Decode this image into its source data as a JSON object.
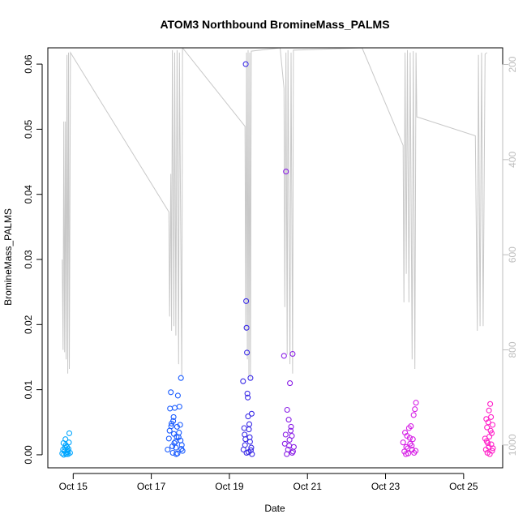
{
  "chart_data": {
    "type": "scatter",
    "title": "ATOM3 Northbound BromineMass_PALMS",
    "xlabel": "Date",
    "ylabel": "BromineMass_PALMS",
    "x_tick_labels": [
      "Oct 15",
      "Oct 17",
      "Oct 19",
      "Oct 21",
      "Oct 23",
      "Oct 25"
    ],
    "x_ticks_days": [
      15,
      17,
      19,
      21,
      23,
      25
    ],
    "xlim_days": [
      14.35,
      26.0
    ],
    "ylim": [
      -0.002,
      0.0625
    ],
    "y_ticks": [
      0.0,
      0.01,
      0.02,
      0.03,
      0.04,
      0.05,
      0.06
    ],
    "y_tick_labels": [
      "0.00",
      "0.01",
      "0.02",
      "0.03",
      "0.04",
      "0.05",
      "0.06"
    ],
    "secondary_y": {
      "label": "",
      "reversed": true,
      "ylim": [
        1048,
        165
      ],
      "ticks": [
        200,
        400,
        600,
        800,
        1000
      ],
      "tick_labels": [
        "200",
        "400",
        "600",
        "800",
        "1000"
      ],
      "color": "#bdbdbd"
    },
    "grid": false,
    "legend": "none",
    "clusters": [
      {
        "color": "#00a6ff",
        "points": [
          [
            14.72,
            0.0002
          ],
          [
            14.75,
            0.0018
          ],
          [
            14.78,
            0.0006
          ],
          [
            14.8,
            0.0024
          ],
          [
            14.82,
            0.0001
          ],
          [
            14.84,
            0.0012
          ],
          [
            14.86,
            0.0004
          ],
          [
            14.88,
            0.0009
          ],
          [
            14.9,
            0.0033
          ],
          [
            14.92,
            0.0003
          ],
          [
            14.76,
            0.0
          ],
          [
            14.81,
            0.0015
          ],
          [
            14.85,
            0.0007
          ],
          [
            14.89,
            0.0019
          ],
          [
            14.79,
            0.0011
          ],
          [
            14.87,
            0.0001
          ],
          [
            14.74,
            0.0008
          ],
          [
            14.83,
            0.0002
          ]
        ]
      },
      {
        "color": "#1a5cff",
        "points": [
          [
            17.42,
            0.0008
          ],
          [
            17.45,
            0.0025
          ],
          [
            17.48,
            0.0071
          ],
          [
            17.5,
            0.0096
          ],
          [
            17.52,
            0.0048
          ],
          [
            17.54,
            0.0013
          ],
          [
            17.56,
            0.0052
          ],
          [
            17.58,
            0.0032
          ],
          [
            17.6,
            0.0072
          ],
          [
            17.62,
            0.002
          ],
          [
            17.64,
            0.0001
          ],
          [
            17.66,
            0.0043
          ],
          [
            17.68,
            0.0091
          ],
          [
            17.7,
            0.0027
          ],
          [
            17.72,
            0.0074
          ],
          [
            17.74,
            0.0046
          ],
          [
            17.76,
            0.0118
          ],
          [
            17.78,
            0.0015
          ],
          [
            17.8,
            0.0006
          ],
          [
            17.47,
            0.0037
          ],
          [
            17.55,
            0.0003
          ],
          [
            17.63,
            0.0011
          ],
          [
            17.71,
            0.0034
          ],
          [
            17.77,
            0.0009
          ],
          [
            17.51,
            0.0044
          ],
          [
            17.59,
            0.0018
          ],
          [
            17.67,
            0.0002
          ],
          [
            17.75,
            0.0022
          ],
          [
            17.57,
            0.0058
          ],
          [
            17.65,
            0.0028
          ]
        ]
      },
      {
        "color": "#3a2be6",
        "points": [
          [
            19.35,
            0.0113
          ],
          [
            19.38,
            0.0041
          ],
          [
            19.42,
            0.06
          ],
          [
            19.43,
            0.0236
          ],
          [
            19.44,
            0.0195
          ],
          [
            19.45,
            0.0157
          ],
          [
            19.46,
            0.0094
          ],
          [
            19.47,
            0.0088
          ],
          [
            19.48,
            0.0059
          ],
          [
            19.5,
            0.0039
          ],
          [
            19.52,
            0.0027
          ],
          [
            19.54,
            0.0118
          ],
          [
            19.36,
            0.0008
          ],
          [
            19.4,
            0.0015
          ],
          [
            19.49,
            0.0004
          ],
          [
            19.53,
            0.002
          ],
          [
            19.56,
            0.0011
          ],
          [
            19.58,
            0.0001
          ],
          [
            19.39,
            0.0031
          ],
          [
            19.51,
            0.0047
          ],
          [
            19.44,
            0.0003
          ],
          [
            19.57,
            0.0063
          ],
          [
            19.41,
            0.0024
          ],
          [
            19.55,
            0.0007
          ]
        ]
      },
      {
        "color": "#8a1fe6",
        "points": [
          [
            20.4,
            0.0152
          ],
          [
            20.45,
            0.0435
          ],
          [
            20.48,
            0.0069
          ],
          [
            20.52,
            0.0054
          ],
          [
            20.55,
            0.011
          ],
          [
            20.58,
            0.0043
          ],
          [
            20.6,
            0.0029
          ],
          [
            20.62,
            0.0155
          ],
          [
            20.42,
            0.0017
          ],
          [
            20.5,
            0.0008
          ],
          [
            20.57,
            0.0037
          ],
          [
            20.65,
            0.0012
          ],
          [
            20.47,
            0.0001
          ],
          [
            20.54,
            0.0023
          ],
          [
            20.63,
            0.0005
          ],
          [
            20.44,
            0.0031
          ],
          [
            20.61,
            0.0003
          ],
          [
            20.53,
            0.0014
          ]
        ]
      },
      {
        "color": "#d61fe6",
        "points": [
          [
            23.45,
            0.0019
          ],
          [
            23.5,
            0.0034
          ],
          [
            23.55,
            0.0029
          ],
          [
            23.6,
            0.0041
          ],
          [
            23.65,
            0.0044
          ],
          [
            23.7,
            0.0024
          ],
          [
            23.75,
            0.007
          ],
          [
            23.78,
            0.008
          ],
          [
            23.72,
            0.0061
          ],
          [
            23.48,
            0.0005
          ],
          [
            23.53,
            0.0012
          ],
          [
            23.58,
            0.0002
          ],
          [
            23.63,
            0.0017
          ],
          [
            23.68,
            0.0008
          ],
          [
            23.73,
            0.0003
          ],
          [
            23.52,
            0.0001
          ],
          [
            23.62,
            0.0026
          ],
          [
            23.57,
            0.001
          ],
          [
            23.67,
            0.0014
          ],
          [
            23.77,
            0.0006
          ]
        ]
      },
      {
        "color": "#ff1fc8",
        "points": [
          [
            25.55,
            0.0025
          ],
          [
            25.58,
            0.0055
          ],
          [
            25.6,
            0.0042
          ],
          [
            25.62,
            0.0018
          ],
          [
            25.65,
            0.0068
          ],
          [
            25.68,
            0.0078
          ],
          [
            25.7,
            0.0058
          ],
          [
            25.72,
            0.0033
          ],
          [
            25.74,
            0.0046
          ],
          [
            25.66,
            0.0028
          ],
          [
            25.57,
            0.0008
          ],
          [
            25.61,
            0.0003
          ],
          [
            25.64,
            0.0012
          ],
          [
            25.67,
            0.0001
          ],
          [
            25.71,
            0.0016
          ],
          [
            25.73,
            0.0006
          ],
          [
            25.59,
            0.0021
          ],
          [
            25.69,
            0.0037
          ],
          [
            25.63,
            0.005
          ],
          [
            25.75,
            0.001
          ]
        ]
      }
    ],
    "secondary_line": {
      "color": "#c8c8c8",
      "points": [
        [
          14.72,
          610
        ],
        [
          14.74,
          800
        ],
        [
          14.76,
          320
        ],
        [
          14.78,
          805
        ],
        [
          14.8,
          320
        ],
        [
          14.82,
          820
        ],
        [
          14.84,
          180
        ],
        [
          14.86,
          850
        ],
        [
          14.88,
          175
        ],
        [
          14.9,
          840
        ],
        [
          14.93,
          175
        ],
        [
          17.45,
          510
        ],
        [
          17.47,
          730
        ],
        [
          17.5,
          430
        ],
        [
          17.52,
          760
        ],
        [
          17.54,
          170
        ],
        [
          17.58,
          750
        ],
        [
          17.6,
          175
        ],
        [
          17.63,
          770
        ],
        [
          17.66,
          170
        ],
        [
          17.7,
          830
        ],
        [
          17.72,
          175
        ],
        [
          17.78,
          855
        ],
        [
          17.8,
          172
        ],
        [
          17.8,
          165
        ],
        [
          19.4,
          330
        ],
        [
          19.42,
          760
        ],
        [
          19.44,
          175
        ],
        [
          19.46,
          820
        ],
        [
          19.48,
          170
        ],
        [
          19.5,
          855
        ],
        [
          19.52,
          175
        ],
        [
          19.54,
          860
        ],
        [
          19.56,
          172
        ],
        [
          20.3,
          165
        ],
        [
          20.4,
          250
        ],
        [
          20.42,
          710
        ],
        [
          20.45,
          175
        ],
        [
          20.48,
          810
        ],
        [
          20.5,
          170
        ],
        [
          20.55,
          830
        ],
        [
          20.58,
          175
        ],
        [
          20.62,
          850
        ],
        [
          20.64,
          170
        ],
        [
          22.4,
          165
        ],
        [
          23.45,
          370
        ],
        [
          23.47,
          700
        ],
        [
          23.5,
          175
        ],
        [
          23.53,
          640
        ],
        [
          23.56,
          170
        ],
        [
          23.6,
          700
        ],
        [
          23.63,
          175
        ],
        [
          23.68,
          820
        ],
        [
          23.71,
          172
        ],
        [
          23.75,
          840
        ],
        [
          23.78,
          175
        ],
        [
          23.8,
          310
        ],
        [
          25.3,
          350
        ],
        [
          25.35,
          760
        ],
        [
          25.38,
          180
        ],
        [
          25.42,
          750
        ],
        [
          25.46,
          175
        ],
        [
          25.5,
          750
        ],
        [
          25.55,
          178
        ],
        [
          25.6,
          175
        ]
      ]
    }
  }
}
